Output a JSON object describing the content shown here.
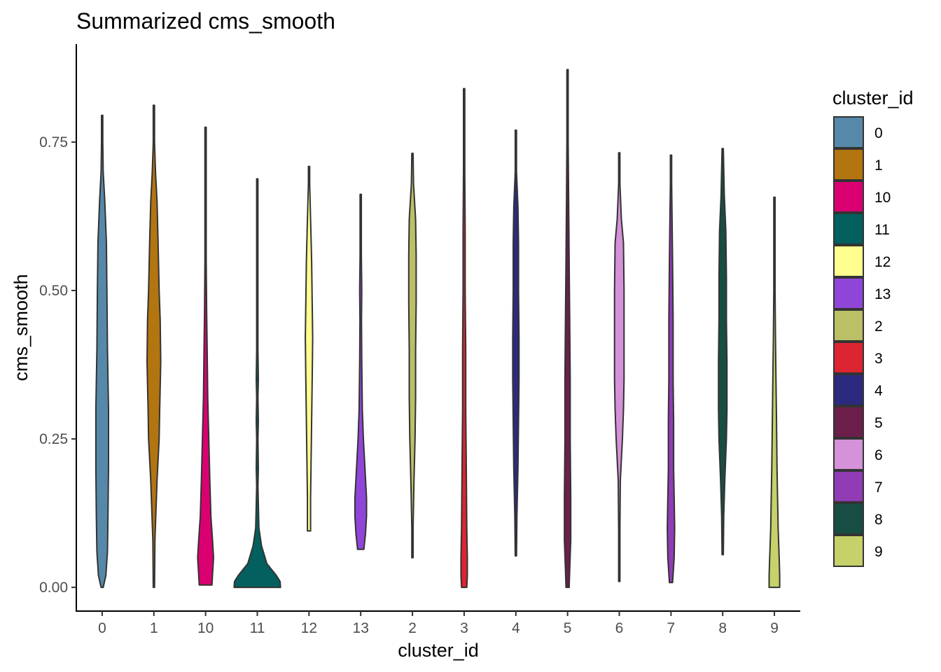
{
  "chart_data": {
    "type": "violin",
    "title": "Summarized cms_smooth",
    "xlabel": "cluster_id",
    "ylabel": "cms_smooth",
    "ylim": [
      -0.04,
      0.915
    ],
    "yticks": [
      0,
      0.25,
      0.5,
      0.75
    ],
    "ytick_labels": [
      "0.00",
      "0.25",
      "0.50",
      "0.75"
    ],
    "grid": false,
    "legend": {
      "title": "cluster_id",
      "placement": "right"
    },
    "categories": [
      "0",
      "1",
      "10",
      "11",
      "12",
      "13",
      "2",
      "3",
      "4",
      "5",
      "6",
      "7",
      "8",
      "9"
    ],
    "series": [
      {
        "name": "0",
        "color": "#5689a9",
        "min": 0.0,
        "max": 0.795,
        "profile": [
          [
            0.0,
            0.002
          ],
          [
            0.02,
            0.007
          ],
          [
            0.06,
            0.01
          ],
          [
            0.12,
            0.011
          ],
          [
            0.2,
            0.012
          ],
          [
            0.3,
            0.012
          ],
          [
            0.4,
            0.01
          ],
          [
            0.5,
            0.009
          ],
          [
            0.58,
            0.008
          ],
          [
            0.65,
            0.005
          ],
          [
            0.7,
            0.002
          ],
          [
            0.75,
            0.001
          ],
          [
            0.795,
            0.0005
          ]
        ]
      },
      {
        "name": "1",
        "color": "#b37510",
        "min": 0.0,
        "max": 0.812,
        "profile": [
          [
            0.0,
            0.0005
          ],
          [
            0.08,
            0.002
          ],
          [
            0.18,
            0.006
          ],
          [
            0.25,
            0.01
          ],
          [
            0.3,
            0.011
          ],
          [
            0.38,
            0.013
          ],
          [
            0.45,
            0.012
          ],
          [
            0.5,
            0.01
          ],
          [
            0.58,
            0.008
          ],
          [
            0.65,
            0.006
          ],
          [
            0.7,
            0.003
          ],
          [
            0.75,
            0.001
          ],
          [
            0.812,
            0.0005
          ]
        ]
      },
      {
        "name": "10",
        "color": "#db0072",
        "min": 0.004,
        "max": 0.775,
        "profile": [
          [
            0.004,
            0.012
          ],
          [
            0.02,
            0.013
          ],
          [
            0.05,
            0.015
          ],
          [
            0.08,
            0.013
          ],
          [
            0.12,
            0.01
          ],
          [
            0.18,
            0.008
          ],
          [
            0.25,
            0.006
          ],
          [
            0.32,
            0.004
          ],
          [
            0.4,
            0.003
          ],
          [
            0.46,
            0.002
          ],
          [
            0.55,
            0.001
          ],
          [
            0.65,
            0.0008
          ],
          [
            0.775,
            0.0005
          ]
        ]
      },
      {
        "name": "11",
        "color": "#045f5f",
        "min": 0.0,
        "max": 0.688,
        "profile": [
          [
            0.0,
            0.044
          ],
          [
            0.01,
            0.043
          ],
          [
            0.02,
            0.036
          ],
          [
            0.04,
            0.018
          ],
          [
            0.07,
            0.008
          ],
          [
            0.1,
            0.003
          ],
          [
            0.14,
            0.002
          ],
          [
            0.17,
            0.001
          ],
          [
            0.2,
            0.002
          ],
          [
            0.25,
            0.001
          ],
          [
            0.28,
            0.002
          ],
          [
            0.32,
            0.001
          ],
          [
            0.35,
            0.002
          ],
          [
            0.4,
            0.001
          ],
          [
            0.45,
            0.001
          ],
          [
            0.55,
            0.0008
          ],
          [
            0.688,
            0.0008
          ]
        ]
      },
      {
        "name": "12",
        "color": "#ffff90",
        "min": 0.095,
        "max": 0.709,
        "profile": [
          [
            0.095,
            0.003
          ],
          [
            0.15,
            0.003
          ],
          [
            0.22,
            0.004
          ],
          [
            0.28,
            0.005
          ],
          [
            0.35,
            0.006
          ],
          [
            0.42,
            0.007
          ],
          [
            0.48,
            0.006
          ],
          [
            0.55,
            0.005
          ],
          [
            0.62,
            0.003
          ],
          [
            0.68,
            0.001
          ],
          [
            0.709,
            0.0005
          ]
        ]
      },
      {
        "name": "13",
        "color": "#9045d9",
        "min": 0.064,
        "max": 0.662,
        "profile": [
          [
            0.064,
            0.006
          ],
          [
            0.09,
            0.009
          ],
          [
            0.12,
            0.011
          ],
          [
            0.15,
            0.011
          ],
          [
            0.2,
            0.008
          ],
          [
            0.25,
            0.005
          ],
          [
            0.3,
            0.003
          ],
          [
            0.38,
            0.002
          ],
          [
            0.45,
            0.0015
          ],
          [
            0.5,
            0.002
          ],
          [
            0.56,
            0.001
          ],
          [
            0.662,
            0.0005
          ]
        ]
      },
      {
        "name": "2",
        "color": "#bbbf66",
        "min": 0.05,
        "max": 0.731,
        "profile": [
          [
            0.05,
            0.0005
          ],
          [
            0.1,
            0.001
          ],
          [
            0.18,
            0.003
          ],
          [
            0.25,
            0.005
          ],
          [
            0.32,
            0.006
          ],
          [
            0.4,
            0.006
          ],
          [
            0.48,
            0.007
          ],
          [
            0.56,
            0.007
          ],
          [
            0.62,
            0.006
          ],
          [
            0.68,
            0.002
          ],
          [
            0.731,
            0.0005
          ]
        ]
      },
      {
        "name": "3",
        "color": "#dc2432",
        "min": 0.0,
        "max": 0.84,
        "profile": [
          [
            0.0,
            0.005
          ],
          [
            0.02,
            0.006
          ],
          [
            0.05,
            0.006
          ],
          [
            0.1,
            0.005
          ],
          [
            0.2,
            0.004
          ],
          [
            0.3,
            0.003
          ],
          [
            0.4,
            0.003
          ],
          [
            0.5,
            0.002
          ],
          [
            0.6,
            0.002
          ],
          [
            0.7,
            0.001
          ],
          [
            0.8,
            0.0005
          ],
          [
            0.84,
            0.0005
          ]
        ]
      },
      {
        "name": "4",
        "color": "#2b2a7e",
        "min": 0.053,
        "max": 0.77,
        "profile": [
          [
            0.053,
            0.0005
          ],
          [
            0.12,
            0.002
          ],
          [
            0.2,
            0.004
          ],
          [
            0.28,
            0.005
          ],
          [
            0.35,
            0.006
          ],
          [
            0.42,
            0.006
          ],
          [
            0.5,
            0.005
          ],
          [
            0.58,
            0.005
          ],
          [
            0.64,
            0.004
          ],
          [
            0.7,
            0.001
          ],
          [
            0.77,
            0.0005
          ]
        ]
      },
      {
        "name": "5",
        "color": "#6b1f4a",
        "min": 0.0,
        "max": 0.872,
        "profile": [
          [
            0.0,
            0.003
          ],
          [
            0.03,
            0.004
          ],
          [
            0.08,
            0.006
          ],
          [
            0.15,
            0.006
          ],
          [
            0.25,
            0.005
          ],
          [
            0.35,
            0.005
          ],
          [
            0.45,
            0.004
          ],
          [
            0.55,
            0.003
          ],
          [
            0.65,
            0.002
          ],
          [
            0.75,
            0.001
          ],
          [
            0.872,
            0.0005
          ]
        ]
      },
      {
        "name": "6",
        "color": "#d592d8",
        "min": 0.01,
        "max": 0.732,
        "profile": [
          [
            0.01,
            0.0005
          ],
          [
            0.1,
            0.001
          ],
          [
            0.18,
            0.002
          ],
          [
            0.25,
            0.006
          ],
          [
            0.3,
            0.008
          ],
          [
            0.35,
            0.009
          ],
          [
            0.42,
            0.009
          ],
          [
            0.5,
            0.009
          ],
          [
            0.58,
            0.008
          ],
          [
            0.62,
            0.004
          ],
          [
            0.68,
            0.001
          ],
          [
            0.732,
            0.0005
          ]
        ]
      },
      {
        "name": "7",
        "color": "#913bb5",
        "min": 0.008,
        "max": 0.728,
        "profile": [
          [
            0.008,
            0.003
          ],
          [
            0.05,
            0.006
          ],
          [
            0.1,
            0.007
          ],
          [
            0.15,
            0.006
          ],
          [
            0.2,
            0.005
          ],
          [
            0.28,
            0.005
          ],
          [
            0.35,
            0.004
          ],
          [
            0.45,
            0.004
          ],
          [
            0.55,
            0.003
          ],
          [
            0.62,
            0.002
          ],
          [
            0.68,
            0.001
          ],
          [
            0.728,
            0.0005
          ]
        ]
      },
      {
        "name": "8",
        "color": "#184d44",
        "min": 0.055,
        "max": 0.739,
        "profile": [
          [
            0.055,
            0.0005
          ],
          [
            0.12,
            0.002
          ],
          [
            0.18,
            0.004
          ],
          [
            0.25,
            0.007
          ],
          [
            0.3,
            0.008
          ],
          [
            0.38,
            0.008
          ],
          [
            0.45,
            0.007
          ],
          [
            0.52,
            0.007
          ],
          [
            0.6,
            0.006
          ],
          [
            0.66,
            0.003
          ],
          [
            0.739,
            0.0005
          ]
        ]
      },
      {
        "name": "9",
        "color": "#c6d169",
        "min": 0.0,
        "max": 0.657,
        "profile": [
          [
            0.0,
            0.01
          ],
          [
            0.02,
            0.01
          ],
          [
            0.05,
            0.009
          ],
          [
            0.1,
            0.007
          ],
          [
            0.15,
            0.006
          ],
          [
            0.2,
            0.005
          ],
          [
            0.28,
            0.004
          ],
          [
            0.35,
            0.003
          ],
          [
            0.42,
            0.002
          ],
          [
            0.5,
            0.001
          ],
          [
            0.657,
            0.0005
          ]
        ]
      }
    ]
  }
}
